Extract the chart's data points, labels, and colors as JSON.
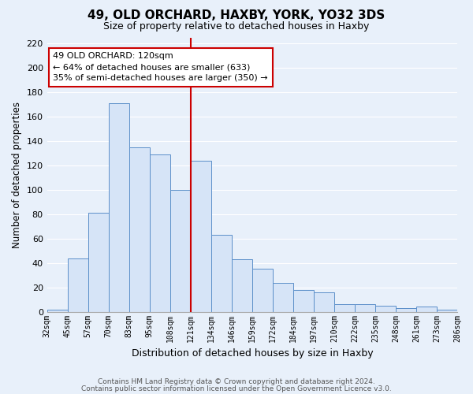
{
  "title": "49, OLD ORCHARD, HAXBY, YORK, YO32 3DS",
  "subtitle": "Size of property relative to detached houses in Haxby",
  "xlabel": "Distribution of detached houses by size in Haxby",
  "ylabel": "Number of detached properties",
  "bar_labels": [
    "32sqm",
    "45sqm",
    "57sqm",
    "70sqm",
    "83sqm",
    "95sqm",
    "108sqm",
    "121sqm",
    "134sqm",
    "146sqm",
    "159sqm",
    "172sqm",
    "184sqm",
    "197sqm",
    "210sqm",
    "222sqm",
    "235sqm",
    "248sqm",
    "261sqm",
    "273sqm",
    "286sqm"
  ],
  "bar_heights": [
    2,
    44,
    81,
    171,
    135,
    129,
    100,
    124,
    63,
    43,
    35,
    24,
    18,
    16,
    6,
    6,
    5,
    3,
    4,
    2
  ],
  "bar_color": "#d6e4f7",
  "bar_edge_color": "#5b8fc9",
  "vline_color": "#cc0000",
  "ylim": [
    0,
    225
  ],
  "yticks": [
    0,
    20,
    40,
    60,
    80,
    100,
    120,
    140,
    160,
    180,
    200,
    220
  ],
  "annotation_title": "49 OLD ORCHARD: 120sqm",
  "annotation_line1": "← 64% of detached houses are smaller (633)",
  "annotation_line2": "35% of semi-detached houses are larger (350) →",
  "annotation_box_color": "#ffffff",
  "annotation_box_edge": "#cc0000",
  "footer_line1": "Contains HM Land Registry data © Crown copyright and database right 2024.",
  "footer_line2": "Contains public sector information licensed under the Open Government Licence v3.0.",
  "bg_color": "#e8f0fa",
  "grid_color": "#ffffff"
}
